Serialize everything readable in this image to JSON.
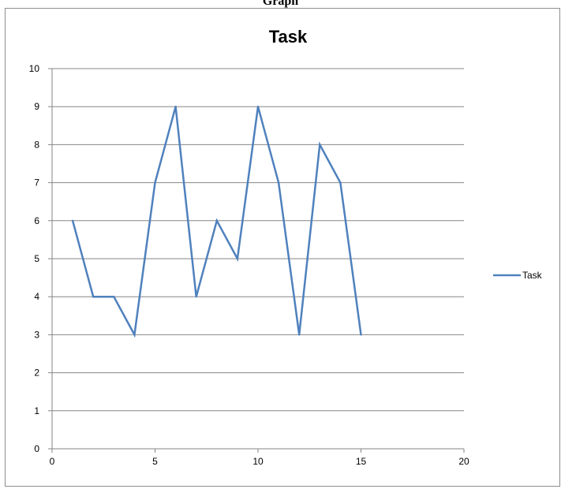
{
  "page": {
    "heading": "Graph"
  },
  "chart_data": {
    "type": "line",
    "title": "Task",
    "xlabel": "",
    "ylabel": "",
    "xlim": [
      0,
      20
    ],
    "ylim": [
      0,
      10
    ],
    "x_ticks": [
      0,
      5,
      10,
      15,
      20
    ],
    "y_ticks": [
      0,
      1,
      2,
      3,
      4,
      5,
      6,
      7,
      8,
      9,
      10
    ],
    "grid": "horizontal",
    "legend_position": "right",
    "series": [
      {
        "name": "Task",
        "color": "#4f81bd",
        "x": [
          1,
          2,
          3,
          4,
          5,
          6,
          7,
          8,
          9,
          10,
          11,
          12,
          13,
          14,
          15
        ],
        "y": [
          6,
          4,
          4,
          3,
          7,
          9,
          4,
          6,
          5,
          9,
          7,
          3,
          8,
          7,
          3
        ]
      }
    ]
  }
}
